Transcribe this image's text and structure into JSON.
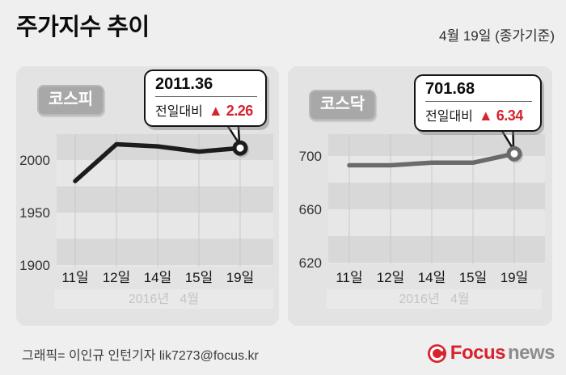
{
  "header": {
    "title": "주가지수 추이",
    "date_note": "4월 19일 (종가기준)"
  },
  "chart_data": [
    {
      "type": "line",
      "title": "코스피",
      "categories": [
        "11일",
        "12일",
        "14일",
        "15일",
        "19일"
      ],
      "values": [
        1980,
        2015,
        2013,
        2008,
        2011.36
      ],
      "yticks": [
        2000,
        1950,
        1900
      ],
      "ylim": [
        1893,
        2023
      ],
      "x_axis_note": "2016년   4월",
      "line_color": "#1c1c1c",
      "grid": "horizontal-bands",
      "legend": "none",
      "callout": {
        "value": "2011.36",
        "delta_label": "전일대비",
        "delta": "▲ 2.26"
      }
    },
    {
      "type": "line",
      "title": "코스닥",
      "categories": [
        "11일",
        "12일",
        "14일",
        "15일",
        "19일"
      ],
      "values": [
        693,
        693,
        695,
        695,
        701.68
      ],
      "yticks": [
        700,
        660,
        620
      ],
      "ylim": [
        615,
        712
      ],
      "x_axis_note": "2016년   4월",
      "line_color": "#6a6a6a",
      "grid": "horizontal-bands",
      "legend": "none",
      "callout": {
        "value": "701.68",
        "delta_label": "전일대비",
        "delta": "▲ 6.34"
      }
    }
  ],
  "footer": {
    "credit": "그래픽= 이인규 인턴기자 lik7273@focus.kr",
    "logo_focus": "Focus",
    "logo_news": "news"
  },
  "colors": {
    "accent_red": "#d7232e",
    "page_bg": "#efefef",
    "panel_bg": "#e3e3e3",
    "band_dark": "#d8d8d8",
    "band_light": "#e7e7e7"
  }
}
